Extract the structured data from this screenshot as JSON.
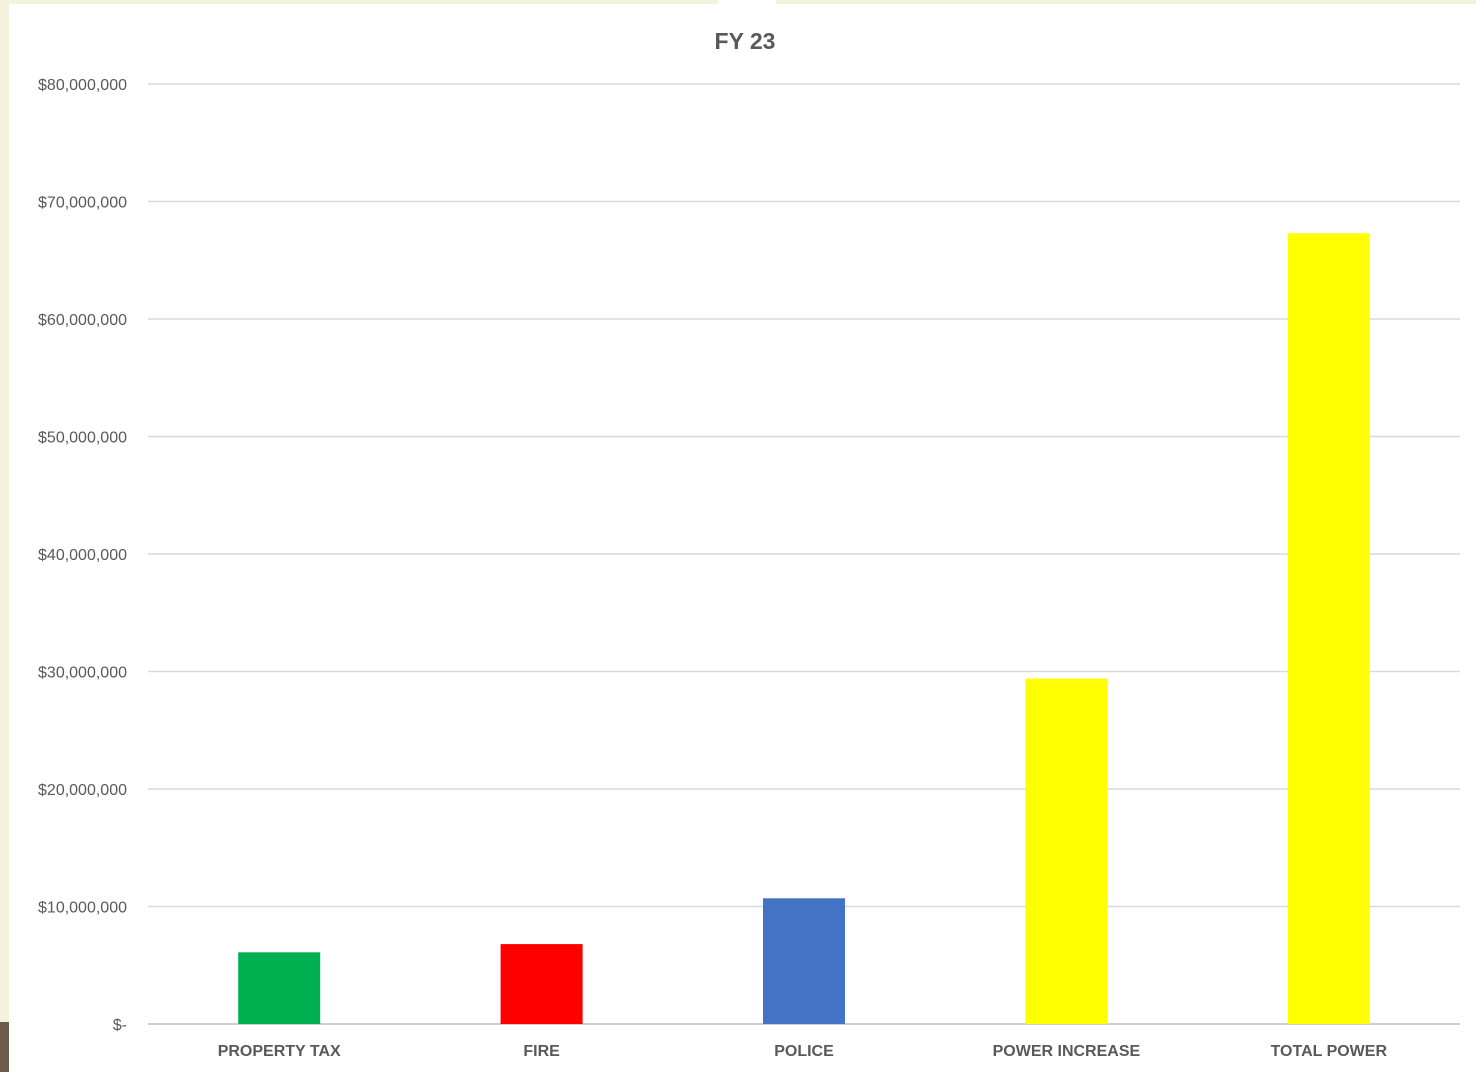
{
  "chart_data": {
    "type": "bar",
    "title": "FY 23",
    "xlabel": "",
    "ylabel": "",
    "categories": [
      "PROPERTY TAX",
      "FIRE",
      "POLICE",
      "POWER INCREASE",
      "TOTAL POWER"
    ],
    "values": [
      6100000,
      6800000,
      10700000,
      29400000,
      67300000
    ],
    "colors": [
      "#00b050",
      "#ff0000",
      "#4472c4",
      "#ffff00",
      "#ffff00"
    ],
    "ylim": [
      0,
      80000000
    ],
    "yticks": [
      0,
      10000000,
      20000000,
      30000000,
      40000000,
      50000000,
      60000000,
      70000000,
      80000000
    ],
    "ytick_labels": [
      "$-",
      "$10,000,000",
      "$20,000,000",
      "$30,000,000",
      "$40,000,000",
      "$50,000,000",
      "$60,000,000",
      "$70,000,000",
      "$80,000,000"
    ],
    "grid": true,
    "legend": "none"
  }
}
